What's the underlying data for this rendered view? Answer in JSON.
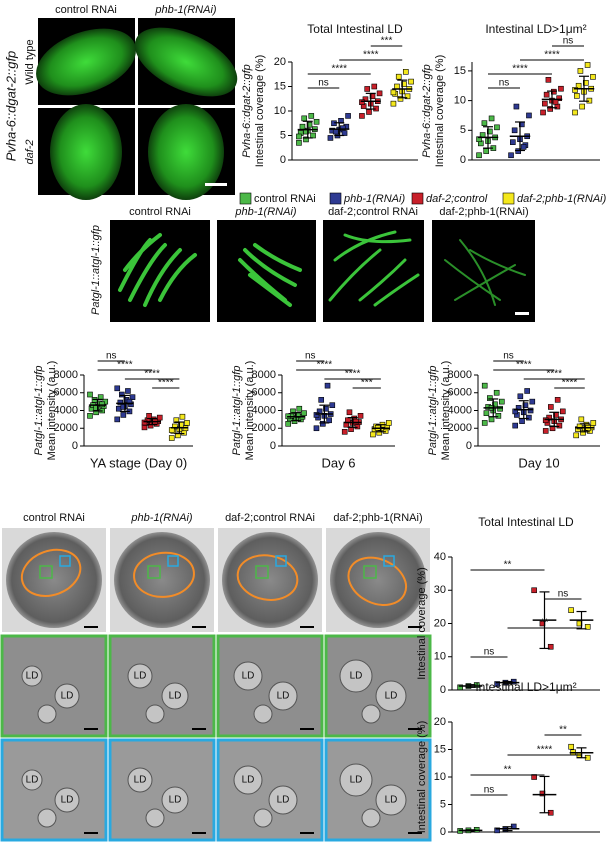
{
  "panel_a": {
    "columns": [
      "control RNAi",
      "phb-1(RNAi)"
    ],
    "rows": [
      "Wild type",
      "daf-2"
    ],
    "reporter": "Pvha-6::dgat-2::gfp"
  },
  "legend": [
    {
      "label": "control RNAi",
      "color": "#4cb848"
    },
    {
      "label": "phb-1(RNAi)",
      "color": "#2e3a92"
    },
    {
      "label": "daf-2;control",
      "color": "#c8202a"
    },
    {
      "label": "daf-2;phb-1(RNAi)",
      "color": "#f4e81c"
    }
  ],
  "panel_b": {
    "reporter": "Patgl-1::atgl-1::gfp",
    "columns": [
      "control RNAi",
      "phb-1(RNAi)",
      "daf-2;control RNAi",
      "daf-2;phb-1(RNAi)"
    ]
  },
  "panel_d": {
    "columns": [
      "control RNAi",
      "phb-1(RNAi)",
      "daf-2;control RNAi",
      "daf-2;phb-1(RNAi)"
    ],
    "ld_label": "LD"
  },
  "chart_data": [
    {
      "type": "strip",
      "title": "Total Intestinal LD",
      "ylabel": "Intestinal coverage (%)",
      "ylabel2": "Pvha-6::dgat-2::gfp",
      "ylim": [
        0,
        20
      ],
      "yticks": [
        0,
        5,
        10,
        15,
        20
      ],
      "series": [
        {
          "color": "#4cb848",
          "values": [
            3.5,
            4.2,
            5,
            5.5,
            6,
            6.3,
            6.8,
            7.2,
            7.8,
            8.5,
            9,
            4.8,
            5.8
          ],
          "mean": 6.2,
          "sd": 1.7
        },
        {
          "color": "#2e3a92",
          "values": [
            4.5,
            5,
            5.5,
            6,
            6.2,
            6.8,
            7.5,
            8,
            9,
            5.8,
            6.5
          ],
          "mean": 6.3,
          "sd": 1.3
        },
        {
          "color": "#c8202a",
          "values": [
            9,
            9.8,
            10.5,
            11,
            11.5,
            12,
            12.4,
            13,
            13.6,
            14.5,
            15,
            11.8
          ],
          "mean": 12,
          "sd": 1.6
        },
        {
          "color": "#f4e81c",
          "values": [
            11.5,
            12.5,
            13,
            13.5,
            14,
            14.5,
            15,
            15.5,
            16,
            17,
            18,
            13.8
          ],
          "mean": 14.5,
          "sd": 1.8
        }
      ],
      "annotations": [
        {
          "text": "ns",
          "from": 0,
          "to": 1
        },
        {
          "text": "****",
          "from": 0,
          "to": 2
        },
        {
          "text": "****",
          "from": 1,
          "to": 3
        },
        {
          "text": "***",
          "from": 2,
          "to": 3
        }
      ]
    },
    {
      "type": "strip",
      "title": "Intestinal LD>1μm²",
      "ylabel": "Intestinal coverage (%)",
      "ylabel2": "Pvha-6::dgat-2::gfp",
      "ylim": [
        0,
        16.5
      ],
      "yticks": [
        0,
        5,
        10,
        15
      ],
      "series": [
        {
          "color": "#4cb848",
          "values": [
            0.8,
            1.5,
            2,
            2.8,
            3.2,
            3.8,
            4.2,
            4.8,
            5.5,
            6.2,
            7,
            3.5
          ],
          "mean": 3.8,
          "sd": 1.8
        },
        {
          "color": "#2e3a92",
          "values": [
            0.8,
            1.5,
            2.5,
            3,
            3.5,
            4,
            5,
            6,
            7.5,
            9,
            2.2
          ],
          "mean": 4,
          "sd": 2.4
        },
        {
          "color": "#c8202a",
          "values": [
            8,
            8.6,
            9,
            9.5,
            10,
            10.4,
            11,
            11.5,
            12,
            13.5,
            9.8
          ],
          "mean": 10.2,
          "sd": 1.4
        },
        {
          "color": "#f4e81c",
          "values": [
            8,
            9,
            10,
            10.8,
            11.5,
            12,
            12.5,
            13,
            14,
            15,
            16,
            11.8
          ],
          "mean": 12,
          "sd": 2.1
        }
      ],
      "annotations": [
        {
          "text": "ns",
          "from": 0,
          "to": 1
        },
        {
          "text": "****",
          "from": 0,
          "to": 2
        },
        {
          "text": "****",
          "from": 1,
          "to": 3
        },
        {
          "text": "ns",
          "from": 2,
          "to": 3
        }
      ]
    },
    {
      "type": "strip",
      "xlabel": "YA stage (Day 0)",
      "ylabel": "Mean intensity (a.u.)",
      "ylabel2": "Patgl-1::atgl-1::gfp",
      "ylim": [
        0,
        8000
      ],
      "yticks": [
        0,
        2000,
        4000,
        6000,
        8000
      ],
      "series": [
        {
          "color": "#4cb848",
          "values": [
            3400,
            3800,
            4000,
            4200,
            4400,
            4500,
            4600,
            4800,
            5000,
            5200,
            5500,
            5800,
            4300,
            4700
          ],
          "mean": 4600,
          "sd": 650
        },
        {
          "color": "#2e3a92",
          "values": [
            3000,
            3500,
            3900,
            4200,
            4500,
            4700,
            4900,
            5200,
            5500,
            5800,
            6200,
            6500,
            4400,
            5000
          ],
          "mean": 4800,
          "sd": 900
        },
        {
          "color": "#c8202a",
          "values": [
            2100,
            2300,
            2500,
            2600,
            2700,
            2800,
            2900,
            3000,
            3200,
            3400,
            2750,
            2650
          ],
          "mean": 2750,
          "sd": 350
        },
        {
          "color": "#f4e81c",
          "values": [
            900,
            1200,
            1500,
            1700,
            1900,
            2000,
            2200,
            2400,
            2600,
            2900,
            3300,
            1800
          ],
          "mean": 2050,
          "sd": 650
        }
      ],
      "annotations": [
        {
          "text": "ns",
          "from": 0,
          "to": 1
        },
        {
          "text": "****",
          "from": 0,
          "to": 2
        },
        {
          "text": "****",
          "from": 1,
          "to": 3
        },
        {
          "text": "****",
          "from": 2,
          "to": 3
        }
      ]
    },
    {
      "type": "strip",
      "xlabel": "Day 6",
      "ylabel": "Mean intensity (a.u.)",
      "ylabel2": "Patgl-1::atgl-1::gfp",
      "ylim": [
        0,
        8000
      ],
      "yticks": [
        0,
        2000,
        4000,
        6000,
        8000
      ],
      "series": [
        {
          "color": "#4cb848",
          "values": [
            2500,
            2800,
            3000,
            3100,
            3200,
            3300,
            3400,
            3500,
            3700,
            3900,
            4200,
            3350
          ],
          "mean": 3300,
          "sd": 450
        },
        {
          "color": "#2e3a92",
          "values": [
            2000,
            2500,
            2900,
            3200,
            3400,
            3600,
            3900,
            4200,
            4600,
            5200,
            6800,
            3500
          ],
          "mean": 3600,
          "sd": 1000
        },
        {
          "color": "#c8202a",
          "values": [
            1600,
            1900,
            2200,
            2400,
            2600,
            2700,
            2900,
            3100,
            3400,
            3800,
            2750
          ],
          "mean": 2650,
          "sd": 550
        },
        {
          "color": "#f4e81c",
          "values": [
            1300,
            1500,
            1700,
            1900,
            2000,
            2100,
            2200,
            2400,
            2600,
            2050
          ],
          "mean": 2000,
          "sd": 400
        }
      ],
      "annotations": [
        {
          "text": "ns",
          "from": 0,
          "to": 1
        },
        {
          "text": "****",
          "from": 0,
          "to": 2
        },
        {
          "text": "****",
          "from": 1,
          "to": 3
        },
        {
          "text": "***",
          "from": 2,
          "to": 3
        }
      ]
    },
    {
      "type": "strip",
      "xlabel": "Day 10",
      "ylabel": "Mean intensity (a.u.)",
      "ylabel2": "Patgl-1::atgl-1::gfp",
      "ylim": [
        0,
        8000
      ],
      "yticks": [
        0,
        2000,
        4000,
        6000,
        8000
      ],
      "series": [
        {
          "color": "#4cb848",
          "values": [
            2600,
            3000,
            3400,
            3700,
            4000,
            4200,
            4400,
            4700,
            5000,
            5400,
            6000,
            6800,
            4300
          ],
          "mean": 4300,
          "sd": 1000
        },
        {
          "color": "#2e3a92",
          "values": [
            2300,
            2800,
            3200,
            3500,
            3800,
            4000,
            4300,
            4600,
            5000,
            5600,
            6200,
            3900
          ],
          "mean": 4100,
          "sd": 1000
        },
        {
          "color": "#c8202a",
          "values": [
            1700,
            2000,
            2300,
            2600,
            2800,
            3000,
            3200,
            3500,
            3900,
            4400,
            5200,
            2900
          ],
          "mean": 3000,
          "sd": 800
        },
        {
          "color": "#f4e81c",
          "values": [
            1200,
            1500,
            1700,
            1900,
            2000,
            2100,
            2200,
            2400,
            2600,
            3000,
            2050
          ],
          "mean": 2050,
          "sd": 450
        }
      ],
      "annotations": [
        {
          "text": "ns",
          "from": 0,
          "to": 1
        },
        {
          "text": "****",
          "from": 0,
          "to": 2
        },
        {
          "text": "****",
          "from": 1,
          "to": 3
        },
        {
          "text": "****",
          "from": 2,
          "to": 3
        }
      ]
    },
    {
      "type": "strip",
      "title": "Total Intestinal LD",
      "ylabel": "Intestinal coverage (%)",
      "ylim": [
        0,
        40
      ],
      "yticks": [
        0,
        10,
        20,
        30,
        40
      ],
      "series": [
        {
          "color": "#4cb848",
          "values": [
            0.8,
            1.2,
            1.5
          ],
          "mean": 1.2,
          "sd": 0.4
        },
        {
          "color": "#2e3a92",
          "values": [
            1.8,
            2.2,
            2.5
          ],
          "mean": 2.2,
          "sd": 0.35
        },
        {
          "color": "#c8202a",
          "values": [
            30,
            20,
            13
          ],
          "mean": 21,
          "sd": 8.5
        },
        {
          "color": "#f4e81c",
          "values": [
            24,
            20,
            19
          ],
          "mean": 21,
          "sd": 2.6
        }
      ],
      "annotations": [
        {
          "text": "ns",
          "from": 0,
          "to": 1
        },
        {
          "text": "**",
          "from": 1,
          "to": 3
        },
        {
          "text": "ns",
          "from": 2,
          "to": 3
        },
        {
          "text": "**",
          "from": 0,
          "to": 2
        }
      ]
    },
    {
      "type": "strip",
      "title": "Intestinal LD>1μm²",
      "ylabel": "Intestinal coverage (%)",
      "ylim": [
        0,
        20
      ],
      "yticks": [
        0,
        5,
        10,
        15,
        20
      ],
      "series": [
        {
          "color": "#4cb848",
          "values": [
            0.2,
            0.3,
            0.4
          ],
          "mean": 0.3,
          "sd": 0.1
        },
        {
          "color": "#2e3a92",
          "values": [
            0.3,
            0.5,
            1
          ],
          "mean": 0.6,
          "sd": 0.35
        },
        {
          "color": "#c8202a",
          "values": [
            10,
            7,
            3.5
          ],
          "mean": 6.8,
          "sd": 3.3
        },
        {
          "color": "#f4e81c",
          "values": [
            15.5,
            14,
            13.5,
            14.5
          ],
          "mean": 14.4,
          "sd": 0.9
        }
      ],
      "annotations": [
        {
          "text": "ns",
          "from": 0,
          "to": 1
        },
        {
          "text": "**",
          "from": 0,
          "to": 2
        },
        {
          "text": "****",
          "from": 1,
          "to": 3
        },
        {
          "text": "**",
          "from": 2,
          "to": 3
        }
      ]
    }
  ]
}
